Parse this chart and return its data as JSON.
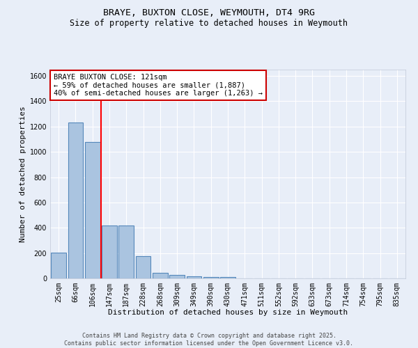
{
  "title": "BRAYE, BUXTON CLOSE, WEYMOUTH, DT4 9RG",
  "subtitle": "Size of property relative to detached houses in Weymouth",
  "xlabel": "Distribution of detached houses by size in Weymouth",
  "ylabel": "Number of detached properties",
  "bar_labels": [
    "25sqm",
    "66sqm",
    "106sqm",
    "147sqm",
    "187sqm",
    "228sqm",
    "268sqm",
    "309sqm",
    "349sqm",
    "390sqm",
    "430sqm",
    "471sqm",
    "511sqm",
    "552sqm",
    "592sqm",
    "633sqm",
    "673sqm",
    "714sqm",
    "754sqm",
    "795sqm",
    "835sqm"
  ],
  "bar_values": [
    203,
    1232,
    1080,
    420,
    420,
    175,
    45,
    25,
    15,
    10,
    10,
    0,
    0,
    0,
    0,
    0,
    0,
    0,
    0,
    0,
    0
  ],
  "bar_color": "#aac4e0",
  "bar_edge_color": "#5588bb",
  "background_color": "#e8eef8",
  "grid_color": "#d0d8e8",
  "red_line_x": 2.5,
  "annotation_text": "BRAYE BUXTON CLOSE: 121sqm\n← 59% of detached houses are smaller (1,887)\n40% of semi-detached houses are larger (1,263) →",
  "annotation_box_color": "#ffffff",
  "annotation_box_edge": "#cc0000",
  "ylim": [
    0,
    1650
  ],
  "yticks": [
    0,
    200,
    400,
    600,
    800,
    1000,
    1200,
    1400,
    1600
  ],
  "footer_line1": "Contains HM Land Registry data © Crown copyright and database right 2025.",
  "footer_line2": "Contains public sector information licensed under the Open Government Licence v3.0.",
  "title_fontsize": 9.5,
  "subtitle_fontsize": 8.5,
  "axis_label_fontsize": 8,
  "tick_fontsize": 7,
  "annotation_fontsize": 7.5,
  "footer_fontsize": 6
}
